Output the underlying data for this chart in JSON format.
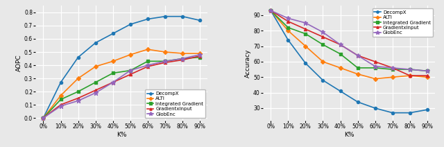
{
  "x": [
    0,
    10,
    20,
    30,
    40,
    50,
    60,
    70,
    80,
    90
  ],
  "left": {
    "ylabel": "AOPC",
    "xlabel": "K%",
    "ylim": [
      -0.02,
      0.85
    ],
    "yticks": [
      0.0,
      0.1,
      0.2,
      0.3,
      0.4,
      0.5,
      0.6,
      0.7,
      0.8
    ],
    "series": {
      "DecompX": [
        0.0,
        0.27,
        0.46,
        0.57,
        0.64,
        0.71,
        0.75,
        0.77,
        0.77,
        0.74
      ],
      "ALTI": [
        0.0,
        0.17,
        0.3,
        0.39,
        0.43,
        0.48,
        0.52,
        0.5,
        0.49,
        0.49
      ],
      "Integrated Gradient": [
        0.0,
        0.14,
        0.2,
        0.27,
        0.34,
        0.36,
        0.43,
        0.43,
        0.45,
        0.46
      ],
      "GradientxInput": [
        0.0,
        0.1,
        0.15,
        0.21,
        0.27,
        0.33,
        0.39,
        0.42,
        0.44,
        0.47
      ],
      "GlobEnc": [
        0.0,
        0.09,
        0.13,
        0.19,
        0.27,
        0.36,
        0.4,
        0.43,
        0.45,
        0.48
      ]
    }
  },
  "right": {
    "ylabel": "Accuracy",
    "xlabel": "K%",
    "ylim": [
      22,
      96
    ],
    "yticks": [
      30,
      40,
      50,
      60,
      70,
      80,
      90
    ],
    "series": {
      "DecompX": [
        93,
        74,
        59,
        48,
        41,
        34,
        30,
        27,
        27,
        29
      ],
      "ALTI": [
        93,
        80,
        70,
        60,
        56,
        52,
        49,
        50,
        51,
        50
      ],
      "Integrated Gradient": [
        93,
        82,
        78,
        71,
        65,
        56,
        56,
        55,
        55,
        54
      ],
      "GradientxInput": [
        93,
        86,
        81,
        76,
        71,
        64,
        60,
        56,
        51,
        51
      ],
      "GlobEnc": [
        93,
        88,
        85,
        79,
        71,
        64,
        57,
        56,
        55,
        54
      ]
    }
  },
  "colors": {
    "DecompX": "#1f77b4",
    "ALTI": "#ff7f0e",
    "Integrated Gradient": "#2ca02c",
    "GradientxInput": "#d62728",
    "GlobEnc": "#9467bd"
  },
  "markers": {
    "DecompX": "o",
    "ALTI": "D",
    "Integrated Gradient": "s",
    "GradientxInput": "^",
    "GlobEnc": "*"
  },
  "marker_sizes": {
    "DecompX": 3,
    "ALTI": 3,
    "Integrated Gradient": 3,
    "GradientxInput": 3,
    "GlobEnc": 5
  },
  "legend_order": [
    "DecompX",
    "ALTI",
    "Integrated Gradient",
    "GradientxInput",
    "GlobEnc"
  ],
  "bg_color": "#e8e8e8"
}
